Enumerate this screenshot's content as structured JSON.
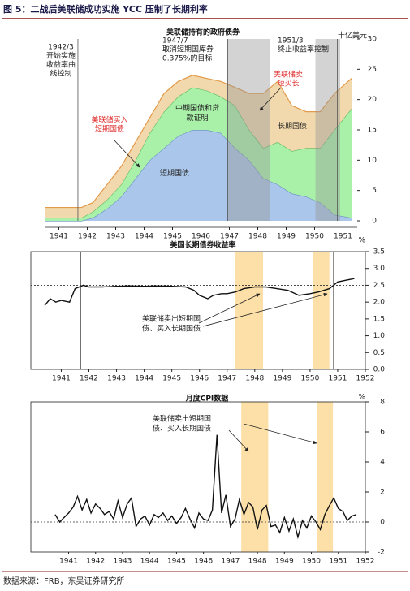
{
  "figure_title": "图 5：二战后美联储成功实施 YCC 压制了长期利率",
  "source": "数据来源：FRB，东吴证券研究所",
  "chart_data": [
    {
      "type": "area",
      "title": "美联储持有的政府债券",
      "unit": "十亿美元",
      "x": [
        1941,
        1941.5,
        1942,
        1942.3,
        1942.7,
        1943.2,
        1943.7,
        1944.2,
        1944.7,
        1945.2,
        1945.7,
        1946.2,
        1946.7,
        1947.2,
        1947.7,
        1948.2,
        1948.7,
        1949.2,
        1949.7,
        1950.2,
        1950.7,
        1951.2,
        1951.8
      ],
      "series": [
        {
          "name": "短期国债",
          "color": "#aac6ea",
          "edge": "#6b8fc4",
          "values": [
            0,
            0,
            0,
            0,
            0.5,
            2,
            4,
            7,
            10,
            12,
            14,
            15,
            15,
            14.5,
            12,
            10,
            7,
            6,
            4.5,
            4,
            3,
            1,
            0.5
          ]
        },
        {
          "name": "中期国债和贷款证明",
          "color": "#a9f1a9",
          "edge": "#5cb85c",
          "values": [
            0.5,
            0.5,
            0.5,
            0.5,
            1,
            1.5,
            2,
            3,
            4.5,
            6,
            6.5,
            7,
            6.5,
            6,
            7,
            5,
            5,
            7,
            7,
            8,
            9,
            14,
            18
          ]
        },
        {
          "name": "长期国债",
          "color": "#f2d9ad",
          "edge": "#e39a4a",
          "values": [
            1.7,
            1.7,
            1.7,
            1.7,
            1.5,
            2.5,
            3,
            3,
            2.5,
            3,
            2.5,
            2,
            2,
            2.5,
            3,
            6,
            9,
            10,
            7.5,
            6,
            6,
            6,
            5
          ]
        }
      ],
      "xlim": [
        1941,
        1952
      ],
      "xticks": [
        {
          "value": 1941.5,
          "label": "1941"
        },
        {
          "value": 1942.5,
          "label": "1942"
        },
        {
          "value": 1943.5,
          "label": "1943"
        },
        {
          "value": 1944.5,
          "label": "1944"
        },
        {
          "value": 1945.5,
          "label": "1945"
        },
        {
          "value": 1946.5,
          "label": "1946"
        },
        {
          "value": 1947.5,
          "label": "1947"
        },
        {
          "value": 1948.5,
          "label": "1948"
        },
        {
          "value": 1949.5,
          "label": "1949"
        },
        {
          "value": 1950.5,
          "label": "1950"
        },
        {
          "value": 1951.5,
          "label": "1951"
        }
      ],
      "ylim": [
        0,
        30
      ],
      "yticks": [
        0,
        5,
        10,
        15,
        20,
        25,
        30
      ],
      "shaded_ranges": [
        [
          1947.44,
          1948.93
        ],
        [
          1950.53,
          1951.4
        ]
      ],
      "shade_color": "rgba(150,150,150,0.42)",
      "vlines": [
        1942.17,
        1947.44,
        1951.3
      ],
      "vline_color": "#555",
      "annotations": [
        {
          "lines": [
            "1942/3",
            "开始实施",
            "收益率曲",
            "线控制"
          ],
          "color": "#222"
        },
        {
          "lines": [
            "1947/7",
            "取消短期国库券",
            "0.375%的目标"
          ],
          "color": "#222"
        },
        {
          "lines": [
            "1951/3",
            "终止收益率控制"
          ],
          "color": "#222"
        },
        {
          "lines": [
            "美联储买入",
            "短期国债"
          ],
          "color": "#e03030"
        },
        {
          "lines": [
            "美联储卖",
            "短买长"
          ],
          "color": "#e03030"
        }
      ]
    },
    {
      "type": "line",
      "title": "美国长期债券收益率",
      "unit": "%",
      "x": [
        1940.4,
        1940.6,
        1940.8,
        1941,
        1941.3,
        1941.5,
        1941.8,
        1942,
        1942.5,
        1943,
        1943.5,
        1944,
        1944.5,
        1945,
        1945.5,
        1945.8,
        1946,
        1946.3,
        1946.5,
        1946.8,
        1947,
        1947.3,
        1947.6,
        1948,
        1948.4,
        1948.8,
        1949.2,
        1949.6,
        1950,
        1950.3,
        1950.7,
        1951,
        1951.3,
        1951.6
      ],
      "series": [
        {
          "name": "美国长期债券收益率",
          "color": "#111",
          "values": [
            1.9,
            2.1,
            2.0,
            2.05,
            2.0,
            2.4,
            2.5,
            2.45,
            2.45,
            2.47,
            2.48,
            2.47,
            2.48,
            2.47,
            2.45,
            2.35,
            2.2,
            2.1,
            2.2,
            2.25,
            2.25,
            2.3,
            2.4,
            2.45,
            2.45,
            2.4,
            2.35,
            2.2,
            2.25,
            2.3,
            2.4,
            2.6,
            2.65,
            2.7
          ]
        }
      ],
      "xlim": [
        1939.9,
        1952
      ],
      "xticks": [
        1941,
        1942,
        1943,
        1944,
        1945,
        1946,
        1947,
        1948,
        1949,
        1950,
        1951,
        1952
      ],
      "ylim": [
        0,
        3.5
      ],
      "yticks": [
        {
          "value": 0,
          "label": "0.0"
        },
        0.5,
        {
          "value": 1,
          "label": "1.0"
        },
        1.5,
        {
          "value": 2,
          "label": "2.0"
        },
        2.5,
        {
          "value": 3,
          "label": "3.0"
        },
        3.5
      ],
      "shaded_ranges": [
        [
          1947.3,
          1948.3
        ],
        [
          1950.1,
          1950.7
        ]
      ],
      "shade_color": "#fde0a8",
      "vlines": [
        1941.7,
        1950.85
      ],
      "vline_color": "#333",
      "reference_line": 2.5,
      "annotations": [
        {
          "lines": [
            "美联储卖出短期国",
            "债、买入长期国债"
          ],
          "color": "#222"
        }
      ]
    },
    {
      "type": "line",
      "title": "月度CPI数据",
      "unit": "%",
      "x": [
        1940.5,
        1940.67,
        1940.83,
        1941,
        1941.17,
        1941.33,
        1941.5,
        1941.67,
        1941.83,
        1942,
        1942.17,
        1942.33,
        1942.5,
        1942.67,
        1942.83,
        1943,
        1943.17,
        1943.33,
        1943.5,
        1943.67,
        1943.83,
        1944,
        1944.17,
        1944.33,
        1944.5,
        1944.67,
        1944.83,
        1945,
        1945.17,
        1945.33,
        1945.5,
        1945.67,
        1945.83,
        1946,
        1946.17,
        1946.33,
        1946.5,
        1946.67,
        1946.83,
        1947,
        1947.17,
        1947.33,
        1947.5,
        1947.67,
        1947.83,
        1948,
        1948.17,
        1948.33,
        1948.5,
        1948.67,
        1948.83,
        1949,
        1949.17,
        1949.33,
        1949.5,
        1949.67,
        1949.83,
        1950,
        1950.17,
        1950.33,
        1950.5,
        1950.67,
        1950.83,
        1951,
        1951.17,
        1951.33,
        1951.5,
        1951.67
      ],
      "series": [
        {
          "name": "月度CPI数据",
          "color": "#111",
          "values": [
            0.5,
            0,
            0.3,
            0.6,
            1.0,
            1.7,
            0.8,
            1.5,
            0.6,
            1.2,
            0.9,
            0.5,
            0.7,
            0.2,
            1.4,
            0.3,
            1.2,
            1.6,
            -0.3,
            0.2,
            0.4,
            -0.2,
            0.5,
            0.3,
            0.6,
            0.1,
            0.4,
            -0.1,
            0.3,
            0.9,
            0.2,
            -0.4,
            0.6,
            0.2,
            0.1,
            0.8,
            5.8,
            0.6,
            1.8,
            -0.3,
            0.2,
            1.5,
            0.5,
            1.3,
            1.0,
            -0.5,
            0.8,
            1.1,
            -0.3,
            -0.2,
            -0.7,
            0.3,
            -0.6,
            0.2,
            -1.0,
            0.1,
            -0.4,
            0.4,
            0.0,
            -0.5,
            0.5,
            1.1,
            1.6,
            0.9,
            0.7,
            0.1,
            0.4,
            0.5
          ]
        }
      ],
      "xlim": [
        1939.6,
        1952
      ],
      "xticks": [
        1941,
        1942,
        1943,
        1944,
        1945,
        1946,
        1947,
        1948,
        1949,
        1950,
        1951,
        1952
      ],
      "ylim": [
        -2,
        8
      ],
      "yticks": [
        -2,
        0,
        2,
        4,
        6,
        8
      ],
      "shaded_ranges": [
        [
          1947.4,
          1948.4
        ],
        [
          1950.2,
          1950.8
        ]
      ],
      "shade_color": "#fde0a8",
      "reference_line": 0,
      "annotations": [
        {
          "lines": [
            "美联储卖出短期国",
            "债、买入长期国债"
          ],
          "color": "#222"
        }
      ]
    }
  ]
}
